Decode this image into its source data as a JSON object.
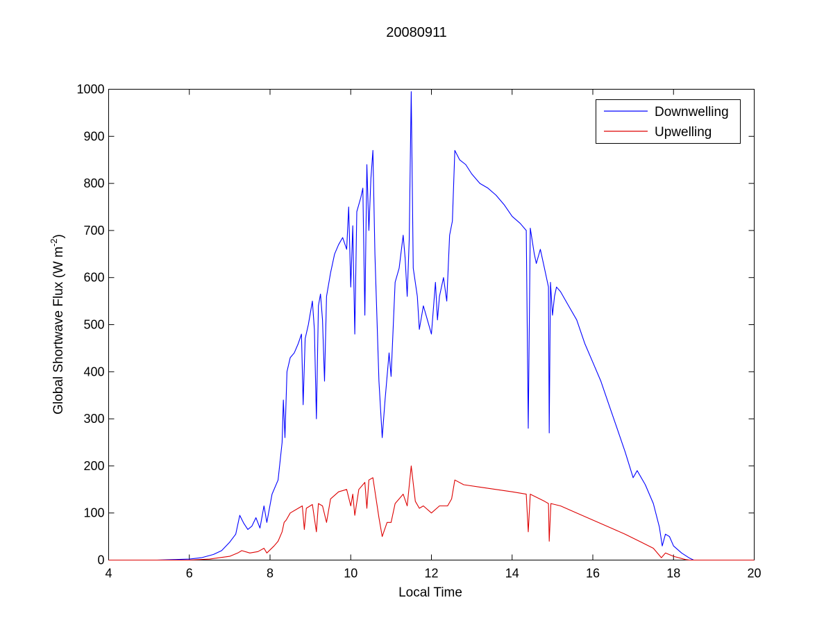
{
  "chart_data": {
    "type": "line",
    "title": "20080911",
    "xlabel": "Local Time",
    "ylabel": {
      "base": "Global Shortwave Flux (W m",
      "superscript": "-2",
      "close": ")"
    },
    "xlim": [
      4,
      20
    ],
    "ylim": [
      0,
      1000
    ],
    "xticks": [
      4,
      6,
      8,
      10,
      12,
      14,
      16,
      18,
      20
    ],
    "yticks": [
      0,
      100,
      200,
      300,
      400,
      500,
      600,
      700,
      800,
      900,
      1000
    ],
    "grid": false,
    "legend_position": "top-right",
    "series": [
      {
        "name": "Downwelling",
        "color": "#0000ff",
        "points": [
          [
            4.0,
            0
          ],
          [
            5.2,
            0
          ],
          [
            5.6,
            1
          ],
          [
            6.0,
            2
          ],
          [
            6.3,
            5
          ],
          [
            6.6,
            12
          ],
          [
            6.8,
            20
          ],
          [
            7.0,
            38
          ],
          [
            7.15,
            55
          ],
          [
            7.25,
            95
          ],
          [
            7.35,
            78
          ],
          [
            7.45,
            65
          ],
          [
            7.55,
            72
          ],
          [
            7.65,
            90
          ],
          [
            7.75,
            68
          ],
          [
            7.85,
            115
          ],
          [
            7.92,
            80
          ],
          [
            8.05,
            140
          ],
          [
            8.2,
            170
          ],
          [
            8.3,
            250
          ],
          [
            8.33,
            340
          ],
          [
            8.37,
            260
          ],
          [
            8.42,
            400
          ],
          [
            8.5,
            430
          ],
          [
            8.6,
            440
          ],
          [
            8.7,
            460
          ],
          [
            8.78,
            480
          ],
          [
            8.82,
            330
          ],
          [
            8.87,
            470
          ],
          [
            8.95,
            500
          ],
          [
            9.05,
            550
          ],
          [
            9.1,
            490
          ],
          [
            9.15,
            300
          ],
          [
            9.2,
            540
          ],
          [
            9.25,
            565
          ],
          [
            9.3,
            510
          ],
          [
            9.35,
            380
          ],
          [
            9.4,
            560
          ],
          [
            9.5,
            610
          ],
          [
            9.6,
            650
          ],
          [
            9.7,
            670
          ],
          [
            9.8,
            685
          ],
          [
            9.9,
            660
          ],
          [
            9.95,
            750
          ],
          [
            10.0,
            580
          ],
          [
            10.05,
            710
          ],
          [
            10.1,
            480
          ],
          [
            10.15,
            740
          ],
          [
            10.25,
            770
          ],
          [
            10.3,
            790
          ],
          [
            10.35,
            520
          ],
          [
            10.4,
            840
          ],
          [
            10.45,
            700
          ],
          [
            10.5,
            810
          ],
          [
            10.55,
            870
          ],
          [
            10.6,
            650
          ],
          [
            10.7,
            380
          ],
          [
            10.78,
            260
          ],
          [
            10.85,
            340
          ],
          [
            10.95,
            440
          ],
          [
            11.0,
            390
          ],
          [
            11.1,
            590
          ],
          [
            11.2,
            620
          ],
          [
            11.3,
            690
          ],
          [
            11.35,
            640
          ],
          [
            11.4,
            560
          ],
          [
            11.45,
            680
          ],
          [
            11.5,
            995
          ],
          [
            11.55,
            620
          ],
          [
            11.65,
            560
          ],
          [
            11.7,
            490
          ],
          [
            11.8,
            540
          ],
          [
            11.9,
            510
          ],
          [
            12.0,
            480
          ],
          [
            12.1,
            590
          ],
          [
            12.15,
            510
          ],
          [
            12.2,
            560
          ],
          [
            12.3,
            600
          ],
          [
            12.38,
            550
          ],
          [
            12.45,
            690
          ],
          [
            12.52,
            720
          ],
          [
            12.58,
            870
          ],
          [
            12.7,
            850
          ],
          [
            12.85,
            840
          ],
          [
            13.0,
            820
          ],
          [
            13.2,
            800
          ],
          [
            13.4,
            790
          ],
          [
            13.6,
            775
          ],
          [
            13.8,
            755
          ],
          [
            14.0,
            730
          ],
          [
            14.2,
            715
          ],
          [
            14.35,
            700
          ],
          [
            14.4,
            280
          ],
          [
            14.45,
            705
          ],
          [
            14.55,
            650
          ],
          [
            14.6,
            630
          ],
          [
            14.7,
            660
          ],
          [
            14.8,
            620
          ],
          [
            14.9,
            580
          ],
          [
            14.92,
            270
          ],
          [
            14.95,
            590
          ],
          [
            15.0,
            520
          ],
          [
            15.05,
            560
          ],
          [
            15.1,
            580
          ],
          [
            15.2,
            570
          ],
          [
            15.4,
            540
          ],
          [
            15.6,
            510
          ],
          [
            15.8,
            460
          ],
          [
            16.0,
            420
          ],
          [
            16.2,
            380
          ],
          [
            16.4,
            330
          ],
          [
            16.6,
            280
          ],
          [
            16.8,
            230
          ],
          [
            17.0,
            175
          ],
          [
            17.1,
            190
          ],
          [
            17.3,
            160
          ],
          [
            17.5,
            120
          ],
          [
            17.65,
            70
          ],
          [
            17.72,
            30
          ],
          [
            17.8,
            55
          ],
          [
            17.9,
            50
          ],
          [
            18.0,
            30
          ],
          [
            18.2,
            15
          ],
          [
            18.4,
            4
          ],
          [
            18.5,
            0
          ],
          [
            20.0,
            0
          ]
        ]
      },
      {
        "name": "Upwelling",
        "color": "#dd0000",
        "points": [
          [
            4.0,
            0
          ],
          [
            6.0,
            0
          ],
          [
            6.5,
            2
          ],
          [
            7.0,
            8
          ],
          [
            7.2,
            15
          ],
          [
            7.3,
            20
          ],
          [
            7.5,
            15
          ],
          [
            7.7,
            18
          ],
          [
            7.85,
            25
          ],
          [
            7.92,
            15
          ],
          [
            8.1,
            30
          ],
          [
            8.2,
            40
          ],
          [
            8.3,
            60
          ],
          [
            8.35,
            80
          ],
          [
            8.4,
            85
          ],
          [
            8.5,
            100
          ],
          [
            8.7,
            110
          ],
          [
            8.8,
            115
          ],
          [
            8.85,
            65
          ],
          [
            8.9,
            110
          ],
          [
            9.05,
            118
          ],
          [
            9.15,
            60
          ],
          [
            9.2,
            120
          ],
          [
            9.3,
            115
          ],
          [
            9.4,
            80
          ],
          [
            9.5,
            130
          ],
          [
            9.7,
            145
          ],
          [
            9.9,
            150
          ],
          [
            10.0,
            115
          ],
          [
            10.05,
            140
          ],
          [
            10.1,
            95
          ],
          [
            10.2,
            150
          ],
          [
            10.35,
            165
          ],
          [
            10.4,
            110
          ],
          [
            10.45,
            170
          ],
          [
            10.55,
            175
          ],
          [
            10.7,
            90
          ],
          [
            10.78,
            50
          ],
          [
            10.9,
            80
          ],
          [
            11.0,
            80
          ],
          [
            11.1,
            120
          ],
          [
            11.3,
            140
          ],
          [
            11.4,
            115
          ],
          [
            11.5,
            200
          ],
          [
            11.6,
            125
          ],
          [
            11.7,
            110
          ],
          [
            11.8,
            115
          ],
          [
            12.0,
            100
          ],
          [
            12.2,
            115
          ],
          [
            12.4,
            115
          ],
          [
            12.5,
            130
          ],
          [
            12.58,
            170
          ],
          [
            12.8,
            160
          ],
          [
            13.2,
            155
          ],
          [
            13.6,
            150
          ],
          [
            14.0,
            145
          ],
          [
            14.35,
            140
          ],
          [
            14.4,
            60
          ],
          [
            14.45,
            140
          ],
          [
            14.8,
            125
          ],
          [
            14.9,
            120
          ],
          [
            14.92,
            40
          ],
          [
            14.96,
            120
          ],
          [
            15.2,
            115
          ],
          [
            15.6,
            100
          ],
          [
            16.0,
            85
          ],
          [
            16.4,
            70
          ],
          [
            16.8,
            55
          ],
          [
            17.2,
            38
          ],
          [
            17.5,
            25
          ],
          [
            17.7,
            5
          ],
          [
            17.8,
            15
          ],
          [
            18.0,
            8
          ],
          [
            18.3,
            1
          ],
          [
            18.4,
            0
          ],
          [
            20.0,
            0
          ]
        ]
      }
    ]
  }
}
